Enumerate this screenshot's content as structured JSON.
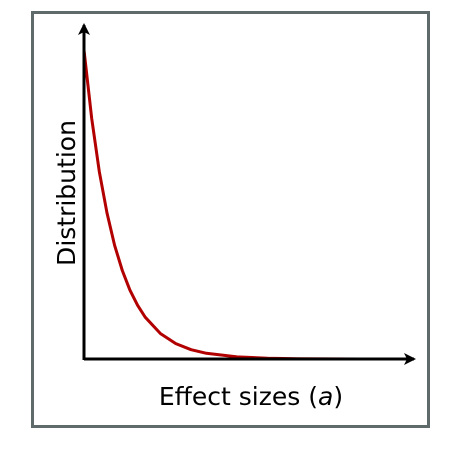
{
  "chart_data": {
    "type": "line",
    "xlabel_text": "Effect sizes (",
    "xlabel_symbol": "a",
    "xlabel_close": ")",
    "ylabel": "Distribution",
    "x_ticks": [],
    "y_ticks": [],
    "legend": "none",
    "grid": false,
    "axis_color": "#000000",
    "frame_color": "#5f6b6b",
    "series": [
      {
        "color": "#b20000",
        "x": [
          0,
          0.25,
          0.5,
          0.75,
          1.0,
          1.25,
          1.5,
          1.75,
          2.0,
          2.5,
          3.0,
          3.5,
          4.0,
          5.0,
          6.0,
          7.0,
          8.0,
          9.0,
          10.0
        ],
        "y": [
          1.0,
          0.7788,
          0.6065,
          0.4724,
          0.3679,
          0.2865,
          0.2231,
          0.1738,
          0.1353,
          0.0821,
          0.0498,
          0.0302,
          0.0183,
          0.0067,
          0.0025,
          0.0009,
          0.0003,
          0.0001,
          0.0
        ]
      }
    ],
    "xlim": [
      0,
      10
    ],
    "ylim": [
      0,
      1.0
    ]
  }
}
